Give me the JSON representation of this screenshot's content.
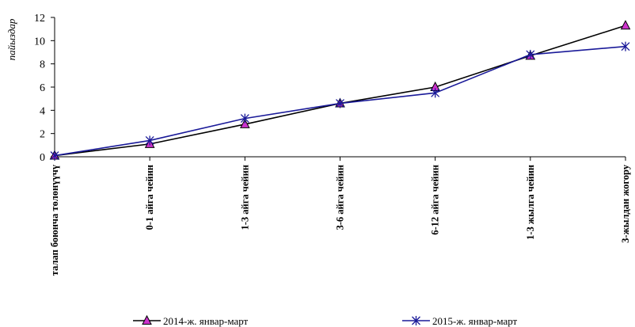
{
  "chart_data": {
    "type": "line",
    "ylabel": "пайыздар",
    "xlabel": "",
    "ylim": [
      0,
      12
    ],
    "yticks": [
      0,
      2,
      4,
      6,
      8,
      10,
      12
    ],
    "categories": [
      "талап боюнча төлөнүүчү",
      "0-1 айга чейин",
      "1-3 айга чейин",
      "3-6 айга чейин",
      "6-12 айга чейин",
      "1-3 жылга чейин",
      "3-жылдан жогору"
    ],
    "series": [
      {
        "name": "2014-ж. январ-март",
        "color": "#000000",
        "marker": "triangle",
        "marker_color": "#cc33cc",
        "values": [
          0.1,
          1.1,
          2.8,
          4.6,
          6.0,
          8.7,
          11.3
        ]
      },
      {
        "name": "2015-ж. январ-март",
        "color": "#1a1a99",
        "marker": "asterisk",
        "marker_color": "#1a1a99",
        "values": [
          0.1,
          1.4,
          3.3,
          4.6,
          5.5,
          8.8,
          9.5
        ]
      }
    ],
    "grid": false,
    "legend_position": "bottom"
  }
}
